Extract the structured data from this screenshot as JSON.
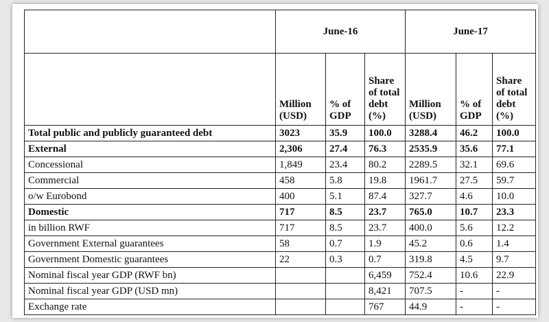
{
  "table": {
    "periods": [
      "June-16",
      "June-17"
    ],
    "subheaders": {
      "million": "Million (USD)",
      "gdp": "% of GDP",
      "share": "Share of total debt (%)"
    },
    "rows": [
      {
        "label": "Total public and publicly guaranteed debt",
        "bold": true,
        "v": [
          "3023",
          "35.9",
          "100.0",
          "3288.4",
          "46.2",
          "100.0"
        ]
      },
      {
        "label": "External",
        "bold": true,
        "v": [
          "2,306",
          "27.4",
          "76.3",
          "2535.9",
          "35.6",
          "77.1"
        ]
      },
      {
        "label": "Concessional",
        "bold": false,
        "v": [
          "1,849",
          "23.4",
          "80.2",
          "2289.5",
          "32.1",
          "69.6"
        ]
      },
      {
        "label": "Commercial",
        "bold": false,
        "v": [
          "458",
          "5.8",
          "19.8",
          "1961.7",
          "27.5",
          "59.7"
        ]
      },
      {
        "label": "o/w Eurobond",
        "bold": false,
        "v": [
          "400",
          "5.1",
          "87.4",
          "327.7",
          "4.6",
          "10.0"
        ]
      },
      {
        "label": "Domestic",
        "bold": true,
        "v": [
          "717",
          "8.5",
          "23.7",
          "765.0",
          "10.7",
          "23.3"
        ]
      },
      {
        "label": "in billion RWF",
        "bold": false,
        "v": [
          "717",
          "8.5",
          "23.7",
          "400.0",
          "5.6",
          "12.2"
        ]
      },
      {
        "label": "Government External guarantees",
        "bold": false,
        "v": [
          "58",
          "0.7",
          "1.9",
          "45.2",
          "0.6",
          "1.4"
        ]
      },
      {
        "label": "Government Domestic guarantees",
        "bold": false,
        "v": [
          "22",
          "0.3",
          "0.7",
          "319.8",
          "4.5",
          "9.7"
        ]
      },
      {
        "label": "Nominal fiscal year GDP (RWF bn)",
        "bold": false,
        "v": [
          "",
          "",
          "6,459",
          "752.4",
          "10.6",
          "22.9"
        ]
      },
      {
        "label": "Nominal fiscal year GDP (USD mn)",
        "bold": false,
        "v": [
          "",
          "",
          "8,421",
          "707.5",
          "-",
          "-"
        ]
      },
      {
        "label": "Exchange rate",
        "bold": false,
        "v": [
          "",
          "",
          "767",
          "44.9",
          "-",
          "-"
        ]
      }
    ]
  }
}
